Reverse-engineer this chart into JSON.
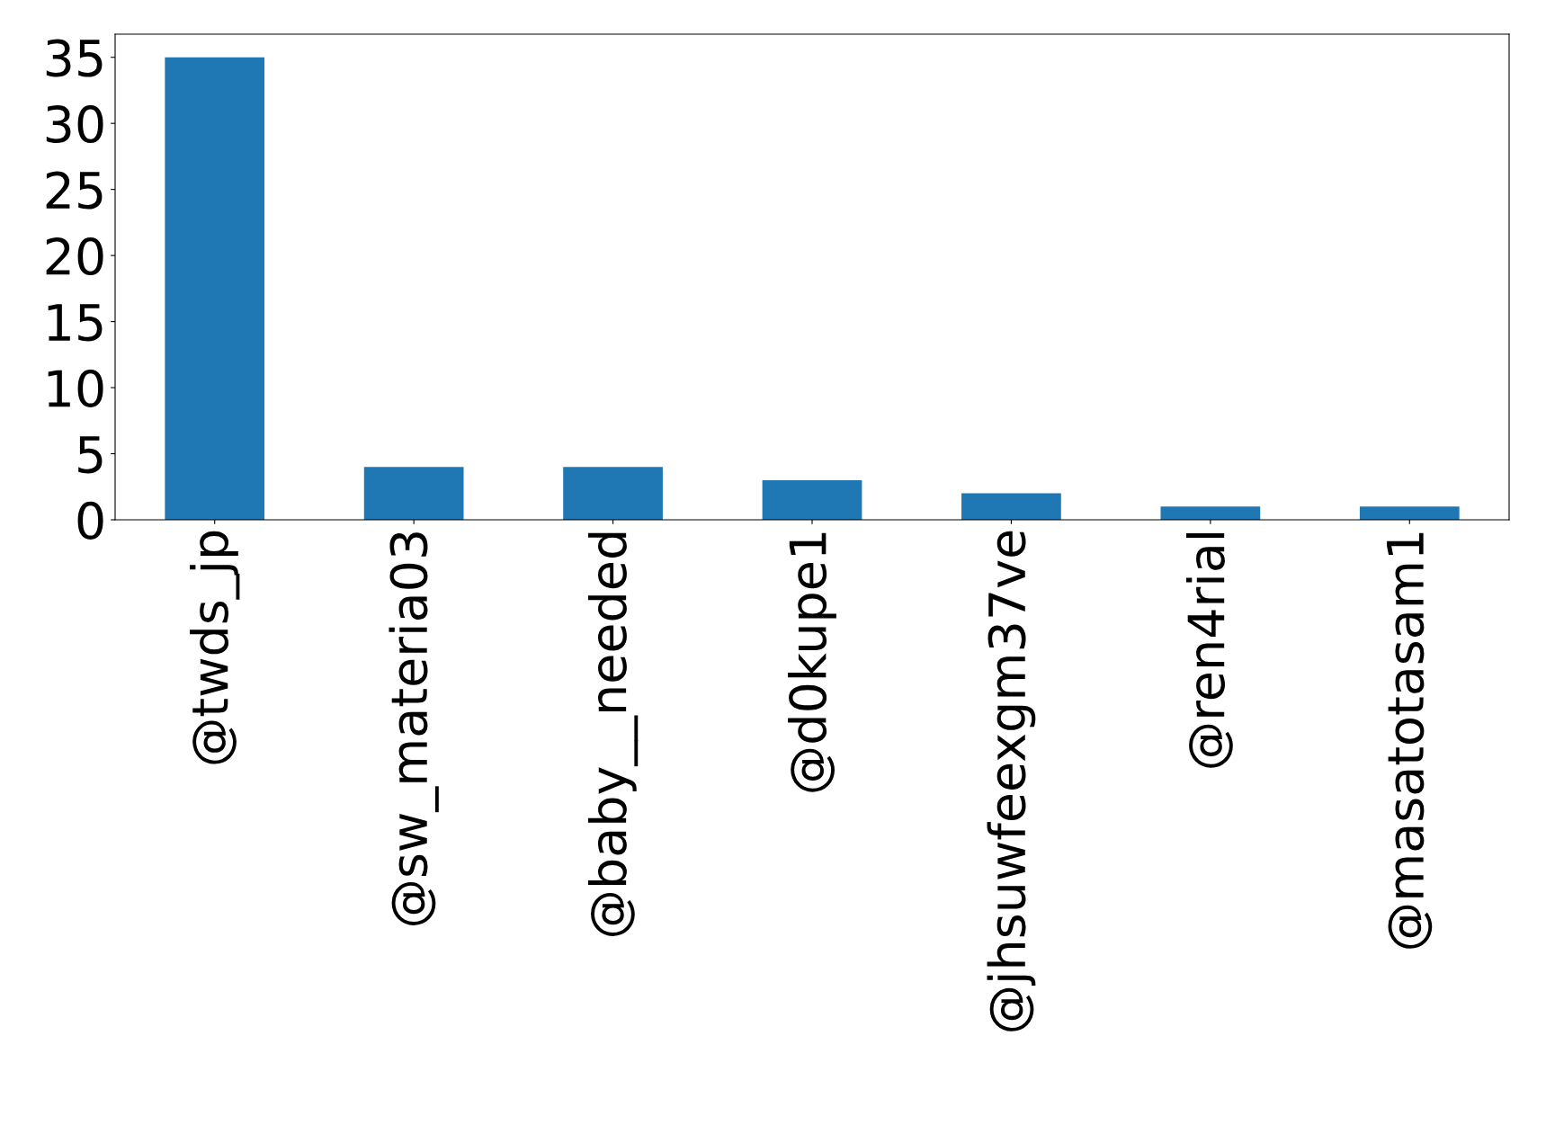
{
  "chart_data": {
    "type": "bar",
    "categories": [
      "@twds_jp",
      "@sw_materia03",
      "@baby__needed",
      "@d0kupe1",
      "@jhsuwfeexgm37ve",
      "@ren4rial",
      "@masatotasam1"
    ],
    "values": [
      35,
      4,
      4,
      3,
      2,
      1,
      1
    ],
    "color": "#1f77b4",
    "ylim": [
      0,
      36.75
    ],
    "yticks": [
      0,
      5,
      10,
      15,
      20,
      25,
      30,
      35
    ],
    "grid": false,
    "legend": false
  }
}
